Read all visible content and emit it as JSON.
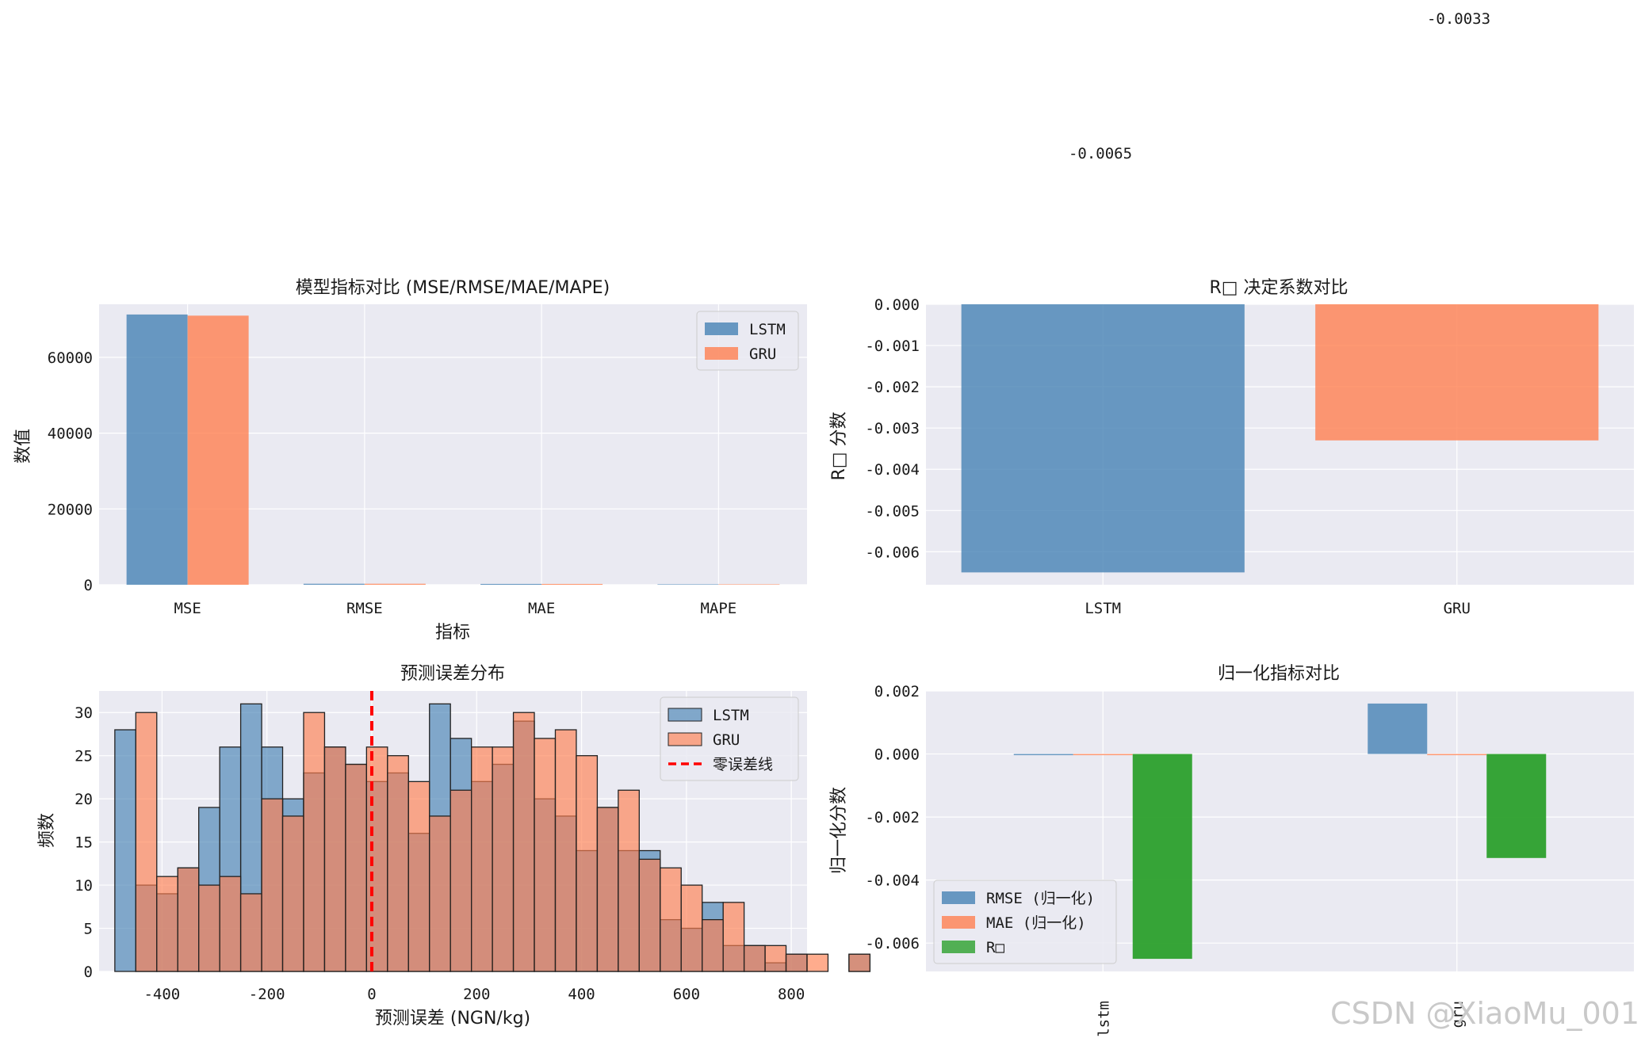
{
  "top_labels": [
    "-0.0033",
    "-0.0065"
  ],
  "watermark": "CSDN @XiaoMu_001",
  "colors": {
    "lstm": "#4682b4",
    "gru": "#ff7f50",
    "r2": "#2ca02c",
    "zero_line": "#ff0000",
    "panel_bg": "#eaeaf2"
  },
  "chart_data": [
    {
      "type": "bar",
      "title": "模型指标对比 (MSE/RMSE/MAE/MAPE)",
      "xlabel": "指标",
      "ylabel": "数值",
      "categories": [
        "MSE",
        "RMSE",
        "MAE",
        "MAPE"
      ],
      "series": [
        {
          "name": "LSTM",
          "values": [
            71300,
            267,
            220,
            120
          ]
        },
        {
          "name": "GRU",
          "values": [
            71000,
            266,
            219,
            119
          ]
        }
      ],
      "ylim": [
        0,
        74000
      ],
      "yticks": [
        0,
        20000,
        40000,
        60000
      ],
      "legend": "top-right",
      "grid": true
    },
    {
      "type": "bar",
      "title": "R□ 决定系数对比",
      "xlabel": "",
      "ylabel": "R□ 分数",
      "categories": [
        "LSTM",
        "GRU"
      ],
      "values": [
        -0.0065,
        -0.0033
      ],
      "ylim": [
        -0.0068,
        0.0
      ],
      "yticks": [
        0.0,
        -0.001,
        -0.002,
        -0.003,
        -0.004,
        -0.005,
        -0.006
      ],
      "ytick_labels": [
        "0.000",
        "-0.001",
        "-0.002",
        "-0.003",
        "-0.004",
        "-0.005",
        "-0.006"
      ],
      "grid": true
    },
    {
      "type": "histogram",
      "title": "预测误差分布",
      "xlabel": "预测误差 (NGN/kg)",
      "ylabel": "频数",
      "bin_start": -490,
      "bin_width": 40,
      "series": [
        {
          "name": "LSTM",
          "bin_start": -490,
          "counts": [
            28,
            10,
            9,
            12,
            19,
            26,
            31,
            26,
            20,
            23,
            26,
            24,
            22,
            23,
            16,
            31,
            27,
            22,
            24,
            29,
            20,
            18,
            14,
            19,
            14,
            14,
            6,
            5,
            8,
            3,
            3,
            1,
            2,
            0,
            0,
            2,
            0
          ]
        },
        {
          "name": "GRU",
          "bin_start": -490,
          "counts": [
            0,
            30,
            11,
            12,
            10,
            11,
            9,
            20,
            18,
            30,
            26,
            24,
            26,
            25,
            22,
            18,
            21,
            26,
            26,
            30,
            27,
            28,
            25,
            19,
            21,
            13,
            12,
            10,
            6,
            8,
            3,
            3,
            2,
            2,
            0,
            2,
            0
          ]
        }
      ],
      "vline": {
        "x": 0,
        "name": "零误差线"
      },
      "xlim": [
        -520,
        830
      ],
      "ylim": [
        0,
        32.5
      ],
      "xticks": [
        -400,
        -200,
        0,
        200,
        400,
        600,
        800
      ],
      "yticks": [
        0,
        5,
        10,
        15,
        20,
        25,
        30
      ],
      "legend": "top-right",
      "grid": true
    },
    {
      "type": "bar",
      "title": "归一化指标对比",
      "xlabel": "",
      "ylabel": "归一化分数",
      "categories": [
        "lstm",
        "gru"
      ],
      "series": [
        {
          "name": "RMSE (归一化)",
          "values": [
            0.0,
            0.0016
          ]
        },
        {
          "name": "MAE (归一化)",
          "values": [
            0.0,
            0.0
          ]
        },
        {
          "name": "R□",
          "values": [
            -0.0065,
            -0.0033
          ]
        }
      ],
      "ylim": [
        -0.0069,
        0.002
      ],
      "yticks": [
        0.002,
        0.0,
        -0.002,
        -0.004,
        -0.006
      ],
      "ytick_labels": [
        "0.002",
        "0.000",
        "-0.002",
        "-0.004",
        "-0.006"
      ],
      "legend": "bottom-left",
      "grid": true
    }
  ]
}
